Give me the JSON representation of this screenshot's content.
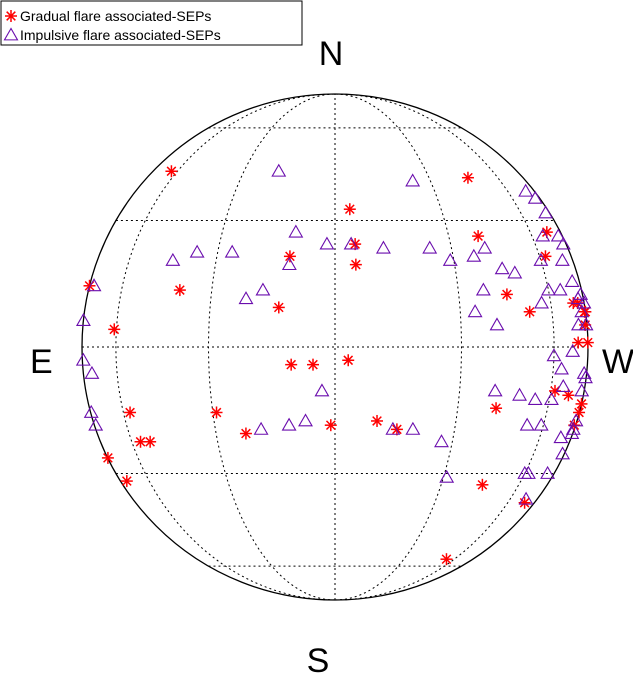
{
  "chart_data": {
    "type": "scatter",
    "projection": "solar-disk (orthographic, Stonyhurst longitude/latitude)",
    "grid": true,
    "grid_style": "dotted",
    "legend_position": "top-left",
    "direction_labels": {
      "north": "N",
      "south": "S",
      "east": "E",
      "west": "W"
    },
    "series": [
      {
        "name": "Gradual flare associated-SEPs",
        "marker": "asterisk",
        "color": "#ff0000",
        "points": [
          [
            -64,
            44
          ],
          [
            -90,
            14
          ],
          [
            -61,
            4
          ],
          [
            -39,
            13
          ],
          [
            -57,
            -15
          ],
          [
            -56,
            -22
          ],
          [
            -87,
            -26
          ],
          [
            -76,
            -32
          ],
          [
            -29,
            -15
          ],
          [
            -22,
            -20
          ],
          [
            -11,
            21
          ],
          [
            -13,
            9
          ],
          [
            5,
            19
          ],
          [
            5,
            24
          ],
          [
            4,
            33
          ],
          [
            3,
            -3
          ],
          [
            -10,
            -4
          ],
          [
            10,
            -17
          ],
          [
            15,
            -19
          ],
          [
            39,
            26
          ],
          [
            45,
            42
          ],
          [
            44,
            12
          ],
          [
            51,
            8
          ],
          [
            63,
            21
          ],
          [
            70,
            27
          ],
          [
            73,
            10
          ],
          [
            77,
            10
          ],
          [
            83,
            5
          ],
          [
            85,
            8
          ],
          [
            88,
            8
          ],
          [
            92,
            1
          ],
          [
            74,
            1
          ],
          [
            90,
            -13
          ],
          [
            87,
            -15
          ],
          [
            84,
            -18
          ],
          [
            70,
            -11
          ],
          [
            62,
            -10
          ],
          [
            41,
            -14
          ],
          [
            44,
            -33
          ],
          [
            72,
            -38
          ],
          [
            54,
            -57
          ],
          [
            -5,
            -4
          ],
          [
            -1,
            -18
          ],
          [
            -52,
            -22
          ]
        ]
      },
      {
        "name": "Impulsive flare associated-SEPs",
        "marker": "triangle",
        "color": "#6a0dad",
        "points": [
          [
            -89,
            6
          ],
          [
            -79,
            14
          ],
          [
            -85,
            -3
          ],
          [
            -75,
            -6
          ],
          [
            -86,
            -15
          ],
          [
            -84,
            -18
          ],
          [
            -18,
            44
          ],
          [
            -26,
            22
          ],
          [
            -36,
            22
          ],
          [
            -43,
            20
          ],
          [
            -11,
            19
          ],
          [
            -17,
            13
          ],
          [
            -21,
            11
          ],
          [
            -2,
            24
          ],
          [
            -10,
            27
          ],
          [
            4,
            24
          ],
          [
            12,
            23
          ],
          [
            24,
            23
          ],
          [
            24,
            41
          ],
          [
            29,
            20
          ],
          [
            36,
            21
          ],
          [
            40,
            23
          ],
          [
            44,
            18
          ],
          [
            48,
            17
          ],
          [
            37,
            13
          ],
          [
            40,
            5
          ],
          [
            34,
            8
          ],
          [
            40,
            -10
          ],
          [
            48,
            -11
          ],
          [
            61,
            -12
          ],
          [
            64,
            -5
          ],
          [
            66,
            -9
          ],
          [
            54,
            -12
          ],
          [
            53,
            -18
          ],
          [
            59,
            -18
          ],
          [
            14,
            -19
          ],
          [
            19,
            -19
          ],
          [
            27,
            -22
          ],
          [
            31,
            -31
          ],
          [
            -7,
            -17
          ],
          [
            -11,
            -18
          ],
          [
            -18,
            -19
          ],
          [
            -3,
            -10
          ],
          [
            73,
            38
          ],
          [
            78,
            36
          ],
          [
            79,
            32
          ],
          [
            81,
            24
          ],
          [
            79,
            26
          ],
          [
            66,
            26
          ],
          [
            73,
            20
          ],
          [
            76,
            15
          ],
          [
            83,
            12
          ],
          [
            85,
            5
          ],
          [
            66,
            13
          ],
          [
            60,
            13
          ],
          [
            60,
            20
          ],
          [
            56,
            10
          ],
          [
            75,
            5
          ],
          [
            78,
            11
          ],
          [
            80,
            8
          ],
          [
            88,
            10
          ],
          [
            60,
            -30
          ],
          [
            62,
            -30
          ],
          [
            71,
            -37
          ],
          [
            76,
            -30
          ],
          [
            73,
            -21
          ],
          [
            85,
            -19
          ],
          [
            85,
            -20
          ],
          [
            83,
            -25
          ],
          [
            85,
            -17
          ],
          [
            82,
            -10
          ],
          [
            82,
            -6
          ],
          [
            70,
            -1
          ],
          [
            60,
            -2
          ],
          [
            86,
            -7
          ]
        ]
      }
    ]
  }
}
